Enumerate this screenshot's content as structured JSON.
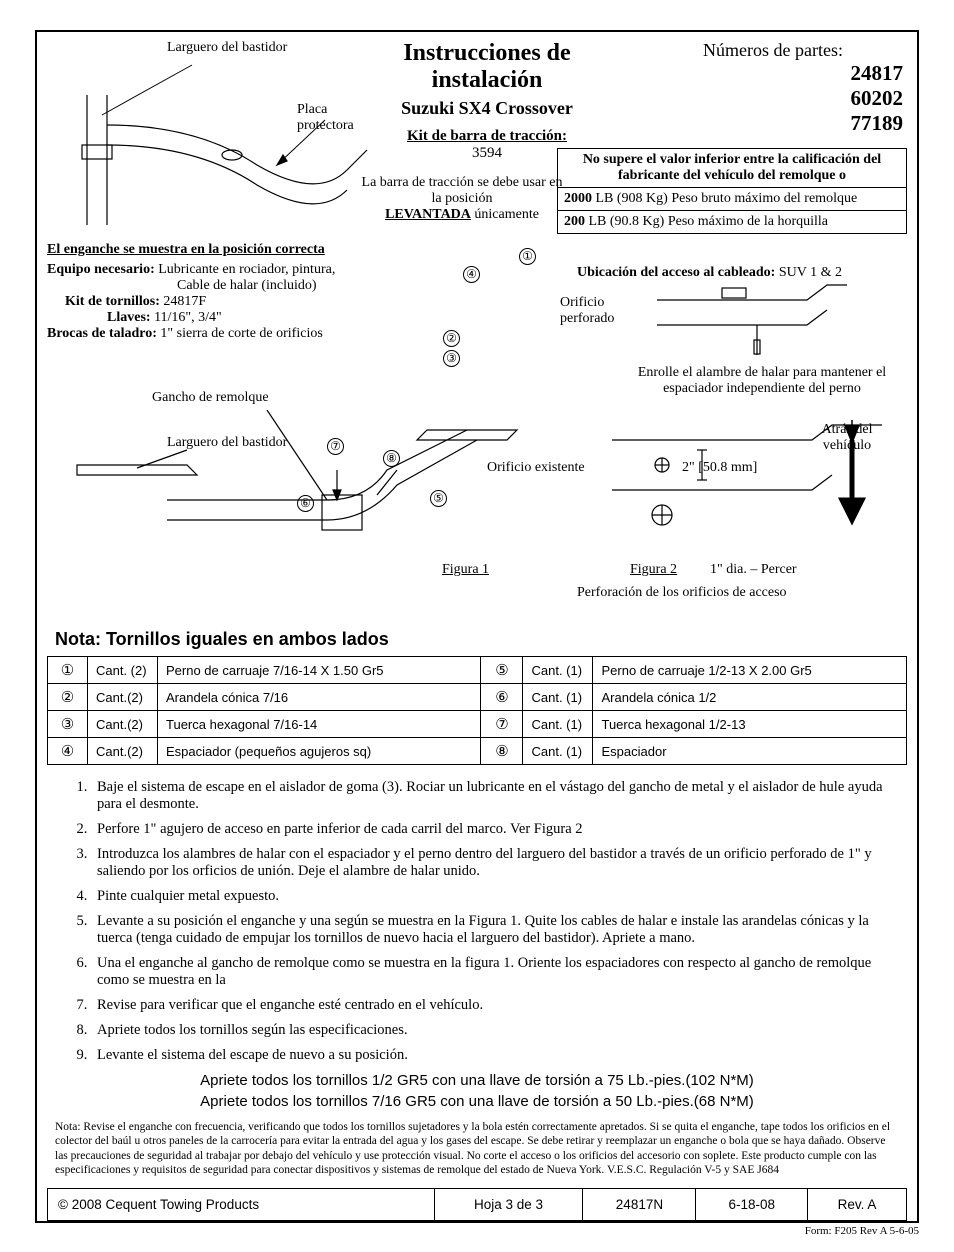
{
  "header": {
    "title": "Instrucciones de instalación",
    "subtitle": "Suzuki SX4 Crossover",
    "kit_label": "Kit de barra de tracción:",
    "kit_number": "3594",
    "parts_label": "Números de partes:",
    "part1": "24817",
    "part2": "60202",
    "part3": "77189",
    "warning": "No supere el valor inferior entre la calificación del fabricante del vehículo del remolque o",
    "rating1_bold": "2000",
    "rating1_rest": " LB (908 Kg) Peso bruto máximo del remolque",
    "rating2_bold": "200",
    "rating2_rest": " LB (90.8 Kg) Peso máximo de la horquilla"
  },
  "callouts": {
    "larguero_top": "Larguero del bastidor",
    "placa": "Placa protectora",
    "barra_usage1": "La barra de tracción se debe usar en la posición",
    "barra_usage2_bold": "LEVANTADA",
    "barra_usage2_rest": " únicamente",
    "hitch_position": "El enganche se muestra en la posición correcta",
    "equipo_label": "Equipo necesario:",
    "equipo_val": "  Lubricante en rociador, pintura,",
    "cable": "Cable de halar (incluido)",
    "bolt_kit_label": "Kit de tornillos:",
    "bolt_kit_val": "  24817F",
    "wrenches_label": "Llaves:",
    "wrenches_val": "  11/16\", 3/4\"",
    "drill_label": "Brocas de taladro:",
    "drill_val": "  1\" sierra de corte de orificios",
    "gancho": "Gancho de remolque",
    "larguero_bot": "Larguero del bastidor",
    "wiring_label": "Ubicación del acceso al cableado:",
    "wiring_val": "  SUV 1 & 2",
    "orificio_perf": "Orificio perforado",
    "enrolle": "Enrolle el alambre de halar para mantener el espaciador independiente del perno",
    "atras": "Atrás del vehículo",
    "orificio_exist": "Orificio existente",
    "dim": "2\" [50.8 mm]",
    "figura1": "Figura 1",
    "figura2": "Figura 2",
    "percer": "1\" dia. – Percer",
    "perforacion": "Perforación de los orificios de acceso"
  },
  "note_title": "Nota: Tornillos iguales en ambos lados",
  "parts": [
    {
      "n": "1",
      "qty": "Cant. (2)",
      "desc": "Perno de carruaje 7/16-14 X 1.50 Gr5"
    },
    {
      "n": "2",
      "qty": "Cant.(2)",
      "desc": "Arandela cónica 7/16"
    },
    {
      "n": "3",
      "qty": "Cant.(2)",
      "desc": "Tuerca hexagonal 7/16-14"
    },
    {
      "n": "4",
      "qty": "Cant.(2)",
      "desc": "Espaciador (pequeños agujeros sq)"
    },
    {
      "n": "5",
      "qty": "Cant. (1)",
      "desc": "Perno de carruaje 1/2-13 X 2.00 Gr5"
    },
    {
      "n": "6",
      "qty": "Cant. (1)",
      "desc": "Arandela cónica 1/2"
    },
    {
      "n": "7",
      "qty": "Cant. (1)",
      "desc": "Tuerca hexagonal 1/2-13"
    },
    {
      "n": "8",
      "qty": "Cant. (1)",
      "desc": "Espaciador"
    }
  ],
  "steps": [
    "Baje el sistema de escape en el aislador de goma (3).  Rociar un lubricante en el vástago del gancho de metal y el aislador de hule ayuda para el desmonte.",
    "Perfore 1\" agujero de acceso en parte inferior de cada carril del marco. Ver Figura 2",
    "Introduzca los alambres de halar con el espaciador y el perno dentro del larguero del bastidor a través de un orificio perforado de 1\" y saliendo por los orficios de unión. Deje el alambre de halar unido.",
    "Pinte cualquier metal expuesto.",
    "Levante a su posición el enganche y una según se muestra en la Figura 1.  Quite los cables de halar e instale las arandelas cónicas y la tuerca (tenga cuidado de empujar los tornillos de nuevo hacia el larguero del bastidor). Apriete a mano.",
    "Una el enganche al gancho de remolque como se muestra en la figura 1.  Oriente los espaciadores con respecto al gancho de remolque como se muestra en la",
    "Revise para verificar que el enganche esté centrado en el vehículo.",
    "Apriete todos los tornillos según las especificaciones.",
    "Levante el sistema del escape de nuevo a su posición."
  ],
  "torque1": "Apriete todos los tornillos 1/2  GR5 con una llave de torsión a 75 Lb.-pies.(102 N*M)",
  "torque2": "Apriete todos los tornillos 7/16 GR5 con una llave de torsión a 50 Lb.-pies.(68 N*M)",
  "fine_print": "Nota: Revise el enganche con frecuencia, verificando que todos los tornillos sujetadores y la bola estén correctamente apretados. Si se quita el enganche, tape todos los orificios en el colector del baúl u otros paneles de la carrocería para evitar la entrada del agua y los gases del escape. Se debe retirar y reemplazar un enganche o bola que se haya dañado. Observe las precauciones de seguridad al trabajar por debajo del vehículo y use protección visual. No corte el acceso o los orificios del accesorio con soplete. Este producto cumple con las especificaciones y requisitos de seguridad para conectar dispositivos y sistemas de remolque del estado de Nueva York. V.E.S.C. Regulación V-5 y SAE J684",
  "footer": {
    "copyright": "© 2008 Cequent Towing Products",
    "sheet": "Hoja 3 de 3",
    "partnum": "24817N",
    "date": "6-18-08",
    "rev": "Rev. A"
  },
  "form_id": "Form: F205 Rev A  5-6-05"
}
